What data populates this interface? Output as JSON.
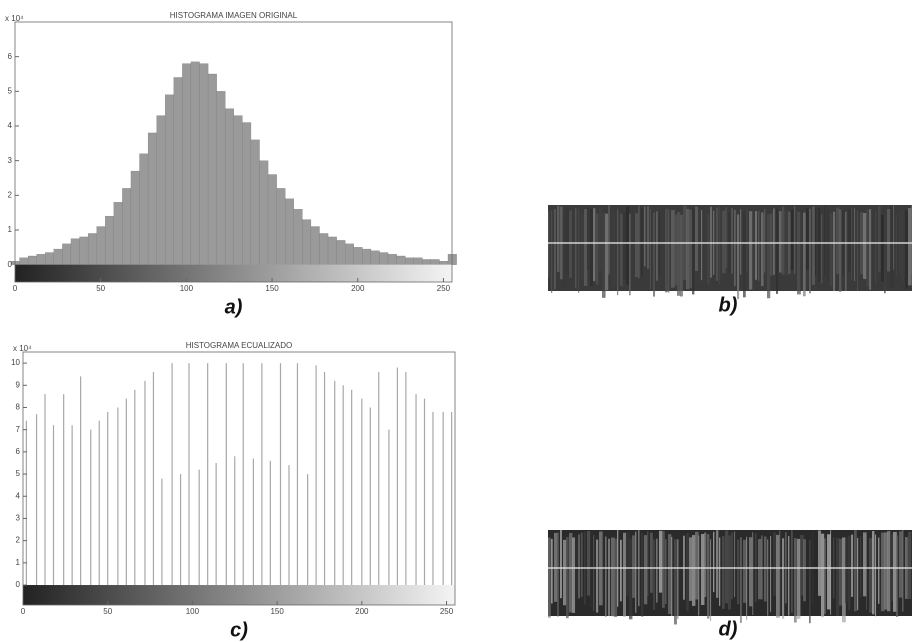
{
  "chart_data": [
    {
      "type": "bar",
      "title": "HISTOGRAMA IMAGEN ORIGINAL",
      "y_multiplier": "x 10⁴",
      "caption": "a)",
      "color": "#9a9a9a",
      "x": [
        0,
        5,
        10,
        15,
        20,
        25,
        30,
        35,
        40,
        45,
        50,
        55,
        60,
        65,
        70,
        75,
        80,
        85,
        90,
        95,
        100,
        105,
        110,
        115,
        120,
        125,
        130,
        135,
        140,
        145,
        150,
        155,
        160,
        165,
        170,
        175,
        180,
        185,
        190,
        195,
        200,
        205,
        210,
        215,
        220,
        225,
        230,
        235,
        240,
        245,
        250,
        255
      ],
      "values": [
        0.1,
        0.2,
        0.25,
        0.3,
        0.35,
        0.45,
        0.6,
        0.75,
        0.8,
        0.9,
        1.1,
        1.4,
        1.8,
        2.2,
        2.7,
        3.2,
        3.8,
        4.3,
        4.9,
        5.4,
        5.8,
        5.85,
        5.8,
        5.5,
        5.0,
        4.5,
        4.3,
        4.1,
        3.6,
        3.0,
        2.6,
        2.2,
        1.9,
        1.6,
        1.3,
        1.1,
        0.9,
        0.8,
        0.7,
        0.6,
        0.5,
        0.45,
        0.4,
        0.35,
        0.3,
        0.25,
        0.2,
        0.2,
        0.15,
        0.15,
        0.1,
        0.3
      ],
      "xlim": [
        0,
        255
      ],
      "ylim": [
        -0.5,
        7
      ],
      "xticks": [
        0,
        50,
        100,
        150,
        200,
        250
      ],
      "yticks": [
        0,
        1,
        2,
        3,
        4,
        5,
        6
      ],
      "grid": false
    },
    {
      "type": "stem",
      "title": "HISTOGRAMA ECUALIZADO",
      "y_multiplier": "x 10⁴",
      "caption": "c)",
      "color": "#a8a8a8",
      "x": [
        2,
        8,
        13,
        18,
        24,
        29,
        34,
        40,
        45,
        50,
        56,
        61,
        66,
        72,
        77,
        82,
        88,
        93,
        98,
        104,
        109,
        114,
        120,
        125,
        130,
        136,
        141,
        146,
        152,
        157,
        162,
        168,
        173,
        178,
        184,
        189,
        194,
        200,
        205,
        210,
        216,
        221,
        226,
        232,
        237,
        242,
        248,
        253
      ],
      "values": [
        7.4,
        7.7,
        8.6,
        7.2,
        8.6,
        7.2,
        9.4,
        7.0,
        7.4,
        7.8,
        8.0,
        8.4,
        8.8,
        9.2,
        9.6,
        4.8,
        10.0,
        5.0,
        10.0,
        5.2,
        10.0,
        5.5,
        10.0,
        5.8,
        10.0,
        5.7,
        10.0,
        5.6,
        10.0,
        5.4,
        10.0,
        5.0,
        9.9,
        9.6,
        9.2,
        9.0,
        8.8,
        8.4,
        8.0,
        9.6,
        7.0,
        9.8,
        9.6,
        8.6,
        8.4,
        7.8,
        7.8,
        7.8
      ],
      "xlim": [
        0,
        255
      ],
      "ylim": [
        -0.9,
        10.5
      ],
      "xticks": [
        0,
        50,
        100,
        150,
        200,
        250
      ],
      "yticks": [
        0,
        1,
        2,
        3,
        4,
        5,
        6,
        7,
        8,
        9,
        10
      ],
      "grid": false
    }
  ],
  "images": [
    {
      "caption": "b)"
    },
    {
      "caption": "d)"
    }
  ]
}
